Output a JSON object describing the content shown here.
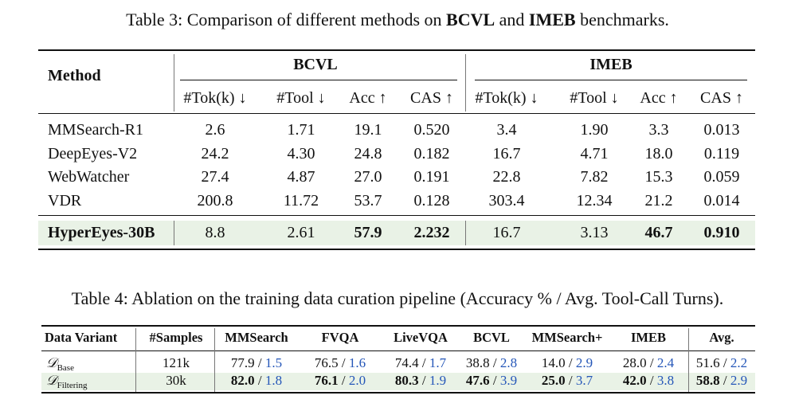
{
  "table3": {
    "caption_prefix": "Table 3: Comparison of different methods on ",
    "caption_b1": "BCVL",
    "caption_mid": " and ",
    "caption_b2": "IMEB",
    "caption_suffix": " benchmarks.",
    "method_header": "Method",
    "group1": "BCVL",
    "group2": "IMEB",
    "subheaders": [
      "#Tok(k) ↓",
      "#Tool ↓",
      "Acc ↑",
      "CAS ↑",
      "#Tok(k) ↓",
      "#Tool ↓",
      "Acc ↑",
      "CAS ↑"
    ],
    "rows": [
      {
        "method": "MMSearch-R1",
        "values": [
          "2.6",
          "1.71",
          "19.1",
          "0.520",
          "3.4",
          "1.90",
          "3.3",
          "0.013"
        ]
      },
      {
        "method": "DeepEyes-V2",
        "values": [
          "24.2",
          "4.30",
          "24.8",
          "0.182",
          "16.7",
          "4.71",
          "18.0",
          "0.119"
        ]
      },
      {
        "method": "WebWatcher",
        "values": [
          "27.4",
          "4.87",
          "27.0",
          "0.191",
          "22.8",
          "7.82",
          "15.3",
          "0.059"
        ]
      },
      {
        "method": "VDR",
        "values": [
          "200.8",
          "11.72",
          "53.7",
          "0.128",
          "303.4",
          "12.34",
          "21.2",
          "0.014"
        ]
      }
    ],
    "highlight_row": {
      "method": "HyperEyes-30B",
      "values": [
        "8.8",
        "2.61",
        "57.9",
        "2.232",
        "16.7",
        "3.13",
        "46.7",
        "0.910"
      ]
    }
  },
  "table4": {
    "caption": "Table 4:  Ablation on the training data curation pipeline (Accuracy % / Avg. Tool-Call Turns).",
    "headers": [
      "Data Variant",
      "#Samples",
      "MMSearch",
      "FVQA",
      "LiveVQA",
      "BCVL",
      "MMSearch+",
      "IMEB",
      "Avg."
    ],
    "rows": [
      {
        "variant_symbol": "𝒟",
        "variant_sub": "Base",
        "samples": "121k",
        "cells": [
          {
            "acc": "77.9",
            "turns": "1.5"
          },
          {
            "acc": "76.5",
            "turns": "1.6"
          },
          {
            "acc": "74.4",
            "turns": "1.7"
          },
          {
            "acc": "38.8",
            "turns": "2.8"
          },
          {
            "acc": "14.0",
            "turns": "2.9"
          },
          {
            "acc": "28.0",
            "turns": "2.4"
          },
          {
            "acc": "51.6",
            "turns": "2.2"
          }
        ]
      },
      {
        "variant_symbol": "𝒟",
        "variant_sub": "Filtering",
        "samples": "30k",
        "cells": [
          {
            "acc": "82.0",
            "turns": "1.8"
          },
          {
            "acc": "76.1",
            "turns": "2.0"
          },
          {
            "acc": "80.3",
            "turns": "1.9"
          },
          {
            "acc": "47.6",
            "turns": "3.9"
          },
          {
            "acc": "25.0",
            "turns": "3.7"
          },
          {
            "acc": "42.0",
            "turns": "3.8"
          },
          {
            "acc": "58.8",
            "turns": "2.9"
          }
        ]
      }
    ],
    "separator": " / ",
    "highlight_color": "#e9f2e6",
    "turns_color": "#2456b8"
  }
}
